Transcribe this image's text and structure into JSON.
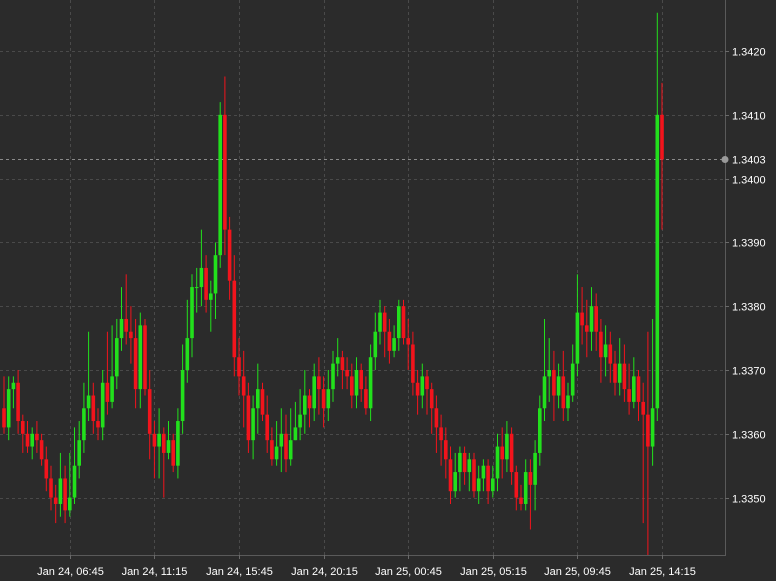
{
  "chart_data": {
    "type": "candlestick",
    "title": "",
    "xlabel": "",
    "ylabel": "",
    "ylim": [
      1.3341,
      1.3428
    ],
    "grid": true,
    "colors": {
      "up": "#22e01c",
      "down": "#f2141c",
      "background": "#2b2b2b",
      "grid": "#4a4a4a",
      "text": "#ffffff"
    },
    "y_ticks": [
      1.335,
      1.336,
      1.337,
      1.338,
      1.339,
      1.34,
      1.341,
      1.342
    ],
    "x_ticks": [
      {
        "label": "Jan 24, 06:45",
        "index": 14
      },
      {
        "label": "Jan 24, 11:15",
        "index": 32
      },
      {
        "label": "Jan 24, 15:45",
        "index": 50
      },
      {
        "label": "Jan 24, 20:15",
        "index": 68
      },
      {
        "label": "Jan 25, 00:45",
        "index": 86
      },
      {
        "label": "Jan 25, 05:15",
        "index": 104
      },
      {
        "label": "Jan 25, 09:45",
        "index": 122
      },
      {
        "label": "Jan 25, 14:15",
        "index": 140
      }
    ],
    "last_price": 1.3403,
    "candles": [
      [
        1.3364,
        1.3361,
        1.3369,
        1.336
      ],
      [
        1.3361,
        1.3367,
        1.3369,
        1.3359
      ],
      [
        1.3367,
        1.3368,
        1.3369,
        1.3364
      ],
      [
        1.3368,
        1.3362,
        1.337,
        1.336
      ],
      [
        1.3362,
        1.336,
        1.3363,
        1.3357
      ],
      [
        1.336,
        1.3358,
        1.3362,
        1.3357
      ],
      [
        1.3358,
        1.336,
        1.3361,
        1.3356
      ],
      [
        1.336,
        1.3359,
        1.3362,
        1.3357
      ],
      [
        1.3359,
        1.3356,
        1.336,
        1.3355
      ],
      [
        1.3356,
        1.3353,
        1.3358,
        1.3351
      ],
      [
        1.3353,
        1.335,
        1.3355,
        1.3348
      ],
      [
        1.335,
        1.3349,
        1.3352,
        1.3346
      ],
      [
        1.3349,
        1.3353,
        1.3357,
        1.3347
      ],
      [
        1.3353,
        1.3348,
        1.3355,
        1.3346
      ],
      [
        1.3348,
        1.335,
        1.3357,
        1.3347
      ],
      [
        1.335,
        1.3355,
        1.3361,
        1.3349
      ],
      [
        1.3355,
        1.3359,
        1.3362,
        1.3353
      ],
      [
        1.3359,
        1.3364,
        1.3368,
        1.3357
      ],
      [
        1.3364,
        1.3366,
        1.3376,
        1.3362
      ],
      [
        1.3366,
        1.3362,
        1.3368,
        1.336
      ],
      [
        1.3362,
        1.3361,
        1.3364,
        1.3359
      ],
      [
        1.3361,
        1.3368,
        1.337,
        1.3359
      ],
      [
        1.3368,
        1.3365,
        1.3376,
        1.3363
      ],
      [
        1.3365,
        1.3369,
        1.3377,
        1.3364
      ],
      [
        1.3369,
        1.3375,
        1.3378,
        1.3367
      ],
      [
        1.3375,
        1.3378,
        1.3383,
        1.3373
      ],
      [
        1.3378,
        1.3376,
        1.3385,
        1.3374
      ],
      [
        1.3376,
        1.3375,
        1.338,
        1.3371
      ],
      [
        1.3375,
        1.3367,
        1.3378,
        1.3364
      ],
      [
        1.3367,
        1.3377,
        1.3379,
        1.3364
      ],
      [
        1.3377,
        1.3367,
        1.3378,
        1.3366
      ],
      [
        1.3367,
        1.336,
        1.337,
        1.3356
      ],
      [
        1.336,
        1.3358,
        1.3362,
        1.3353
      ],
      [
        1.3358,
        1.336,
        1.3364,
        1.3353
      ],
      [
        1.336,
        1.3357,
        1.3361,
        1.335
      ],
      [
        1.3357,
        1.3359,
        1.3362,
        1.3356
      ],
      [
        1.3359,
        1.3355,
        1.336,
        1.3354
      ],
      [
        1.3355,
        1.3362,
        1.3364,
        1.3353
      ],
      [
        1.3362,
        1.337,
        1.3374,
        1.336
      ],
      [
        1.337,
        1.3375,
        1.3381,
        1.3368
      ],
      [
        1.3375,
        1.3383,
        1.3385,
        1.3372
      ],
      [
        1.3383,
        1.3383,
        1.3386,
        1.3379
      ],
      [
        1.3383,
        1.3386,
        1.3392,
        1.338
      ],
      [
        1.3386,
        1.3381,
        1.3388,
        1.3379
      ],
      [
        1.3381,
        1.3382,
        1.3384,
        1.3376
      ],
      [
        1.3382,
        1.3388,
        1.339,
        1.3378
      ],
      [
        1.3388,
        1.341,
        1.3412,
        1.3386
      ],
      [
        1.341,
        1.3392,
        1.3416,
        1.3388
      ],
      [
        1.3392,
        1.3384,
        1.3394,
        1.3381
      ],
      [
        1.3384,
        1.3372,
        1.3388,
        1.3369
      ],
      [
        1.3372,
        1.3369,
        1.3375,
        1.3366
      ],
      [
        1.3369,
        1.3366,
        1.3373,
        1.3361
      ],
      [
        1.3366,
        1.3359,
        1.3368,
        1.3357
      ],
      [
        1.3359,
        1.3364,
        1.3366,
        1.3356
      ],
      [
        1.3364,
        1.3367,
        1.3371,
        1.336
      ],
      [
        1.3367,
        1.3363,
        1.3368,
        1.3362
      ],
      [
        1.3363,
        1.3359,
        1.3366,
        1.3357
      ],
      [
        1.3359,
        1.3356,
        1.3361,
        1.3355
      ],
      [
        1.3356,
        1.3358,
        1.3362,
        1.3355
      ],
      [
        1.3358,
        1.336,
        1.3364,
        1.3354
      ],
      [
        1.336,
        1.3356,
        1.3363,
        1.3354
      ],
      [
        1.3356,
        1.3359,
        1.3364,
        1.3355
      ],
      [
        1.3359,
        1.3361,
        1.3365,
        1.3359
      ],
      [
        1.3361,
        1.3363,
        1.3367,
        1.3359
      ],
      [
        1.3363,
        1.3366,
        1.337,
        1.336
      ],
      [
        1.3366,
        1.3364,
        1.3367,
        1.3361
      ],
      [
        1.3364,
        1.3369,
        1.3371,
        1.3362
      ],
      [
        1.3369,
        1.3367,
        1.3372,
        1.3363
      ],
      [
        1.3367,
        1.3364,
        1.3369,
        1.3361
      ],
      [
        1.3364,
        1.3367,
        1.337,
        1.3362
      ],
      [
        1.3367,
        1.3371,
        1.3373,
        1.3365
      ],
      [
        1.3371,
        1.3372,
        1.3375,
        1.3369
      ],
      [
        1.3372,
        1.337,
        1.3373,
        1.3367
      ],
      [
        1.337,
        1.3369,
        1.3372,
        1.3367
      ],
      [
        1.3369,
        1.3366,
        1.3371,
        1.3364
      ],
      [
        1.3366,
        1.337,
        1.3372,
        1.3364
      ],
      [
        1.337,
        1.3367,
        1.3371,
        1.3365
      ],
      [
        1.3367,
        1.3364,
        1.3369,
        1.3363
      ],
      [
        1.3364,
        1.3372,
        1.3374,
        1.3362
      ],
      [
        1.3372,
        1.3376,
        1.3379,
        1.337
      ],
      [
        1.3376,
        1.3379,
        1.3381,
        1.3374
      ],
      [
        1.3379,
        1.3376,
        1.338,
        1.3372
      ],
      [
        1.3376,
        1.3373,
        1.3378,
        1.3371
      ],
      [
        1.3373,
        1.3375,
        1.3377,
        1.3372
      ],
      [
        1.3375,
        1.338,
        1.3381,
        1.3373
      ],
      [
        1.338,
        1.3375,
        1.3381,
        1.3374
      ],
      [
        1.3375,
        1.3374,
        1.3378,
        1.337
      ],
      [
        1.3374,
        1.3368,
        1.3376,
        1.3366
      ],
      [
        1.3368,
        1.3366,
        1.337,
        1.3363
      ],
      [
        1.3366,
        1.3369,
        1.3371,
        1.3364
      ],
      [
        1.3369,
        1.3367,
        1.337,
        1.3363
      ],
      [
        1.3367,
        1.3364,
        1.3368,
        1.336
      ],
      [
        1.3364,
        1.3361,
        1.3366,
        1.3357
      ],
      [
        1.3361,
        1.3359,
        1.3363,
        1.3355
      ],
      [
        1.3359,
        1.3356,
        1.3361,
        1.3353
      ],
      [
        1.3356,
        1.3351,
        1.3358,
        1.3349
      ],
      [
        1.3351,
        1.3354,
        1.3357,
        1.335
      ],
      [
        1.3354,
        1.3357,
        1.3358,
        1.3351
      ],
      [
        1.3357,
        1.3354,
        1.3358,
        1.3352
      ],
      [
        1.3354,
        1.3356,
        1.3357,
        1.3351
      ],
      [
        1.3356,
        1.3351,
        1.3357,
        1.335
      ],
      [
        1.3351,
        1.3353,
        1.3355,
        1.3349
      ],
      [
        1.3353,
        1.3355,
        1.3356,
        1.3351
      ],
      [
        1.3355,
        1.3351,
        1.3356,
        1.3349
      ],
      [
        1.3351,
        1.3353,
        1.3355,
        1.335
      ],
      [
        1.3353,
        1.3358,
        1.336,
        1.3351
      ],
      [
        1.3358,
        1.3356,
        1.3361,
        1.3353
      ],
      [
        1.3356,
        1.336,
        1.3362,
        1.3354
      ],
      [
        1.336,
        1.3354,
        1.3361,
        1.3352
      ],
      [
        1.3354,
        1.335,
        1.3355,
        1.3348
      ],
      [
        1.335,
        1.3349,
        1.3352,
        1.3348
      ],
      [
        1.3349,
        1.3354,
        1.3356,
        1.3348
      ],
      [
        1.3354,
        1.3352,
        1.3356,
        1.3345
      ],
      [
        1.3352,
        1.3357,
        1.3359,
        1.3348
      ],
      [
        1.3357,
        1.3364,
        1.3366,
        1.3355
      ],
      [
        1.3364,
        1.3369,
        1.3378,
        1.3362
      ],
      [
        1.3369,
        1.337,
        1.3375,
        1.3365
      ],
      [
        1.337,
        1.3366,
        1.3373,
        1.3362
      ],
      [
        1.3366,
        1.3369,
        1.3371,
        1.3364
      ],
      [
        1.3369,
        1.3364,
        1.3373,
        1.3362
      ],
      [
        1.3364,
        1.3366,
        1.3368,
        1.3362
      ],
      [
        1.3366,
        1.3371,
        1.3374,
        1.3365
      ],
      [
        1.3371,
        1.3379,
        1.3385,
        1.3369
      ],
      [
        1.3379,
        1.3377,
        1.3383,
        1.3374
      ],
      [
        1.3377,
        1.3376,
        1.3381,
        1.3372
      ],
      [
        1.3376,
        1.338,
        1.3383,
        1.3373
      ],
      [
        1.338,
        1.3376,
        1.3382,
        1.3373
      ],
      [
        1.3376,
        1.3372,
        1.3378,
        1.3368
      ],
      [
        1.3372,
        1.3374,
        1.3377,
        1.3369
      ],
      [
        1.3374,
        1.3371,
        1.3376,
        1.3368
      ],
      [
        1.3371,
        1.3368,
        1.3373,
        1.3366
      ],
      [
        1.3368,
        1.3371,
        1.3375,
        1.3366
      ],
      [
        1.3371,
        1.3367,
        1.3374,
        1.3365
      ],
      [
        1.3367,
        1.3365,
        1.3371,
        1.3363
      ],
      [
        1.3365,
        1.3369,
        1.3372,
        1.3364
      ],
      [
        1.3369,
        1.3365,
        1.337,
        1.3362
      ],
      [
        1.3365,
        1.3363,
        1.3368,
        1.3346
      ],
      [
        1.3363,
        1.3358,
        1.3376,
        1.3341
      ],
      [
        1.3358,
        1.3364,
        1.3378,
        1.3355
      ],
      [
        1.3364,
        1.341,
        1.3426,
        1.3362
      ],
      [
        1.341,
        1.3403,
        1.3415,
        1.3392
      ]
    ]
  }
}
